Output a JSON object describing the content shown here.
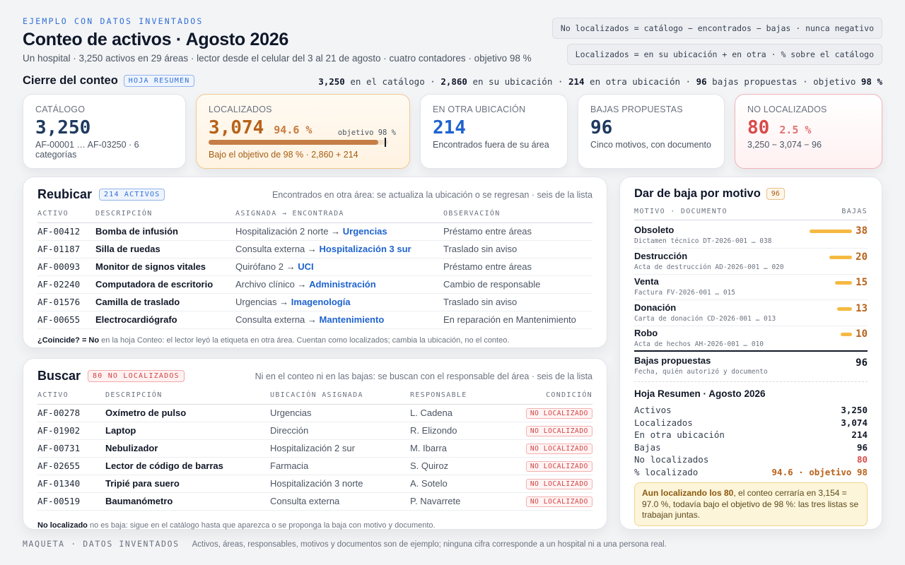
{
  "header": {
    "eyebrow": "EJEMPLO CON DATOS INVENTADOS",
    "title": "Conteo de activos · Agosto 2026",
    "subtitle": "Un hospital · 3,250 activos en 29 áreas · lector desde el celular del 3 al 21 de agosto · cuatro contadores · objetivo 98 %",
    "legend_1": "No localizados = catálogo − encontrados − bajas · nunca negativo",
    "legend_2": "Localizados = en su ubicación + en otra · % sobre el catálogo"
  },
  "cierre": {
    "label": "Cierre del conteo",
    "tag": "HOJA RESUMEN",
    "s1v": "3,250",
    "s1t": " en el catálogo · ",
    "s2v": "2,860",
    "s2t": " en su ubicación · ",
    "s3v": "214",
    "s3t": " en otra ubicación · ",
    "s4v": "96",
    "s4t": " bajas propuestas · objetivo ",
    "s5v": "98 %"
  },
  "kpis": {
    "catalogo": {
      "label": "CATÁLOGO",
      "value": "3,250",
      "sub": "AF-00001 … AF-03250 · 6 categorías"
    },
    "localizados": {
      "label": "LOCALIZADOS",
      "value": "3,074",
      "pct": "94.6 %",
      "target_label": "objetivo 98 %",
      "sub": "Bajo el objetivo de 98 % · 2,860 + 214",
      "progress": 0.946,
      "target": 0.98
    },
    "otra": {
      "label": "EN OTRA UBICACIÓN",
      "value": "214",
      "sub": "Encontrados fuera de su área"
    },
    "bajas": {
      "label": "BAJAS PROPUESTAS",
      "value": "96",
      "sub": "Cinco motivos, con documento"
    },
    "nolocalizados": {
      "label": "NO LOCALIZADOS",
      "value": "80",
      "pct": "2.5 %",
      "sub": "3,250 − 3,074 − 96"
    }
  },
  "colors": {
    "accent": "#2f6fd6",
    "orange": "#b8621a",
    "red": "#d94a4a",
    "navy": "#1e3a5f"
  },
  "reubicar": {
    "title": "Reubicar",
    "tag": "214 ACTIVOS",
    "desc": "Encontrados en otra área: se actualiza la ubicación o se regresan · seis de la lista",
    "columns": [
      "ACTIVO",
      "DESCRIPCIÓN",
      "ASIGNADA → ENCONTRADA",
      "OBSERVACIÓN"
    ],
    "rows": [
      {
        "id": "AF-00412",
        "desc": "Bomba de infusión",
        "from": "Hospitalización 2 norte",
        "to": "Urgencias",
        "obs": "Préstamo entre áreas"
      },
      {
        "id": "AF-01187",
        "desc": "Silla de ruedas",
        "from": "Consulta externa",
        "to": "Hospitalización 3 sur",
        "obs": "Traslado sin aviso"
      },
      {
        "id": "AF-00093",
        "desc": "Monitor de signos vitales",
        "from": "Quirófano 2",
        "to": "UCI",
        "obs": "Préstamo entre áreas"
      },
      {
        "id": "AF-02240",
        "desc": "Computadora de escritorio",
        "from": "Archivo clínico",
        "to": "Administración",
        "obs": "Cambio de responsable"
      },
      {
        "id": "AF-01576",
        "desc": "Camilla de traslado",
        "from": "Urgencias",
        "to": "Imagenología",
        "obs": "Traslado sin aviso"
      },
      {
        "id": "AF-00655",
        "desc": "Electrocardiógrafo",
        "from": "Consulta externa",
        "to": "Mantenimiento",
        "obs": "En reparación en Mantenimiento"
      }
    ],
    "arrow": "→",
    "foot_bold": "¿Coincide? = No",
    "foot_text": " en la hoja Conteo: el lector leyó la etiqueta en otra área. Cuentan como localizados; cambia la ubicación, no el conteo."
  },
  "buscar": {
    "title": "Buscar",
    "tag": "80 NO LOCALIZADOS",
    "desc": "Ni en el conteo ni en las bajas: se buscan con el responsable del área · seis de la lista",
    "columns": [
      "ACTIVO",
      "DESCRIPCIÓN",
      "UBICACIÓN ASIGNADA",
      "RESPONSABLE",
      "CONDICIÓN"
    ],
    "rows": [
      {
        "id": "AF-00278",
        "desc": "Oxímetro de pulso",
        "loc": "Urgencias",
        "resp": "L. Cadena",
        "cond": "NO LOCALIZADO"
      },
      {
        "id": "AF-01902",
        "desc": "Laptop",
        "loc": "Dirección",
        "resp": "R. Elizondo",
        "cond": "NO LOCALIZADO"
      },
      {
        "id": "AF-00731",
        "desc": "Nebulizador",
        "loc": "Hospitalización 2 sur",
        "resp": "M. Ibarra",
        "cond": "NO LOCALIZADO"
      },
      {
        "id": "AF-02655",
        "desc": "Lector de código de barras",
        "loc": "Farmacia",
        "resp": "S. Quiroz",
        "cond": "NO LOCALIZADO"
      },
      {
        "id": "AF-01340",
        "desc": "Tripié para suero",
        "loc": "Hospitalización 3 norte",
        "resp": "A. Sotelo",
        "cond": "NO LOCALIZADO"
      },
      {
        "id": "AF-00519",
        "desc": "Baumanómetro",
        "loc": "Consulta externa",
        "resp": "P. Navarrete",
        "cond": "NO LOCALIZADO"
      }
    ],
    "foot_bold": "No localizado",
    "foot_text": " no es baja: sigue en el catálogo hasta que aparezca o se proponga la baja con motivo y documento."
  },
  "baja": {
    "title": "Dar de baja por motivo",
    "tag": "96",
    "col_left": "MOTIVO · DOCUMENTO",
    "col_right": "BAJAS",
    "rows": [
      {
        "motivo": "Obsoleto",
        "doc": "Dictamen técnico DT-2026-001 … 038",
        "n": "38",
        "value": 38
      },
      {
        "motivo": "Destrucción",
        "doc": "Acta de destrucción AD-2026-001 … 020",
        "n": "20",
        "value": 20
      },
      {
        "motivo": "Venta",
        "doc": "Factura FV-2026-001 … 015",
        "n": "15",
        "value": 15
      },
      {
        "motivo": "Donación",
        "doc": "Carta de donación CD-2026-001 … 013",
        "n": "13",
        "value": 13
      },
      {
        "motivo": "Robo",
        "doc": "Acta de hechos AH-2026-001 … 010",
        "n": "10",
        "value": 10
      }
    ],
    "total_label": "Bajas propuestas",
    "total_sub": "Fecha, quién autorizó y documento",
    "total": "96"
  },
  "hoja": {
    "title": "Hoja Resumen · Agosto 2026",
    "rows": [
      {
        "label": "Activos",
        "value": "3,250"
      },
      {
        "label": "Localizados",
        "value": "3,074"
      },
      {
        "label": "En otra ubicación",
        "value": "214"
      },
      {
        "label": "Bajas",
        "value": "96"
      },
      {
        "label": "No localizados",
        "value": "80"
      },
      {
        "label": "% localizado",
        "value": "94.6 · objetivo 98"
      }
    ],
    "note_bold": "Aun localizando los 80",
    "note_text": ", el conteo cerraría en 3,154 = 97.0 %, todavía bajo el objetivo de 98 %: las tres listas se trabajan juntas."
  },
  "footer": {
    "tag": "MAQUETA · DATOS INVENTADOS",
    "text": "Activos, áreas, responsables, motivos y documentos son de ejemplo; ninguna cifra corresponde a un hospital ni a una persona real."
  }
}
